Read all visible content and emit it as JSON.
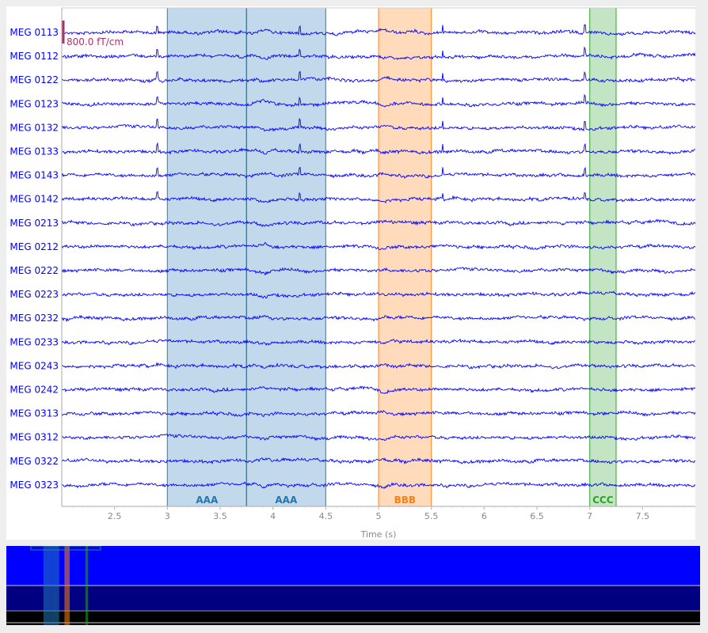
{
  "chart_data": {
    "type": "line",
    "xlabel": "Time (s)",
    "xlim": [
      2.0,
      8.0
    ],
    "xticks": [
      2.5,
      3,
      3.5,
      4,
      4.5,
      5,
      5.5,
      6,
      6.5,
      7,
      7.5
    ],
    "xtick_labels": [
      "2.5",
      "3",
      "3.5",
      "4",
      "4.5",
      "5",
      "5.5",
      "6",
      "6.5",
      "7",
      "7.5"
    ],
    "trace_color": "#0000ff",
    "channels": [
      "MEG 0113",
      "MEG 0112",
      "MEG 0122",
      "MEG 0123",
      "MEG 0132",
      "MEG 0133",
      "MEG 0143",
      "MEG 0142",
      "MEG 0213",
      "MEG 0212",
      "MEG 0222",
      "MEG 0223",
      "MEG 0232",
      "MEG 0233",
      "MEG 0243",
      "MEG 0242",
      "MEG 0313",
      "MEG 0312",
      "MEG 0322",
      "MEG 0323"
    ],
    "scale_bar": {
      "label": "800.0 fT/cm",
      "color": "#b0306f"
    },
    "annotations": [
      {
        "label": "AAA",
        "onset": 3.0,
        "offset": 3.75,
        "color": "#1f77b4"
      },
      {
        "label": "AAA",
        "onset": 3.75,
        "offset": 4.5,
        "color": "#1f77b4"
      },
      {
        "label": "BBB",
        "onset": 5.0,
        "offset": 5.5,
        "color": "#ff7f0e"
      },
      {
        "label": "CCC",
        "onset": 7.0,
        "offset": 7.25,
        "color": "#2ca02c"
      }
    ],
    "grid": false
  },
  "overview": {
    "colors": {
      "top": "#0000ff",
      "middle": "#000080",
      "bottom": "#000000"
    }
  }
}
